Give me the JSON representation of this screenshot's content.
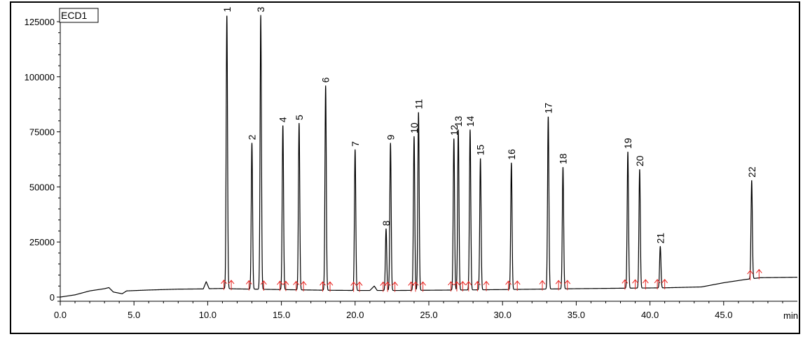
{
  "chart_data": {
    "type": "line",
    "title": "",
    "channel_label": "ECD1",
    "xlabel": "min",
    "ylabel": "",
    "xlim": [
      0,
      50
    ],
    "ylim": [
      0,
      125000
    ],
    "grid": false,
    "x_ticks": [
      "0.0",
      "5.0",
      "10.0",
      "15.0",
      "20.0",
      "25.0",
      "30.0",
      "35.0",
      "40.0",
      "45.0"
    ],
    "y_ticks": [
      "0",
      "25000",
      "50000",
      "75000",
      "100000",
      "125000"
    ],
    "x_tick_values": [
      0,
      5,
      10,
      15,
      20,
      25,
      30,
      35,
      40,
      45
    ],
    "y_tick_values": [
      0,
      25000,
      50000,
      75000,
      100000,
      125000
    ],
    "peaks": [
      {
        "label": "1",
        "rt": 11.3,
        "height": 128000
      },
      {
        "label": "2",
        "rt": 13.0,
        "height": 70000
      },
      {
        "label": "3",
        "rt": 13.6,
        "height": 128000
      },
      {
        "label": "4",
        "rt": 15.1,
        "height": 78000
      },
      {
        "label": "5",
        "rt": 16.2,
        "height": 79000
      },
      {
        "label": "6",
        "rt": 18.0,
        "height": 96000
      },
      {
        "label": "7",
        "rt": 20.0,
        "height": 67000
      },
      {
        "label": "8",
        "rt": 22.1,
        "height": 31000
      },
      {
        "label": "9",
        "rt": 22.4,
        "height": 70000
      },
      {
        "label": "10",
        "rt": 24.0,
        "height": 73000
      },
      {
        "label": "11",
        "rt": 24.3,
        "height": 84000
      },
      {
        "label": "12",
        "rt": 26.7,
        "height": 72000
      },
      {
        "label": "13",
        "rt": 27.0,
        "height": 76000
      },
      {
        "label": "14",
        "rt": 27.8,
        "height": 76000
      },
      {
        "label": "15",
        "rt": 28.5,
        "height": 63000
      },
      {
        "label": "16",
        "rt": 30.6,
        "height": 61000
      },
      {
        "label": "17",
        "rt": 33.1,
        "height": 82000
      },
      {
        "label": "18",
        "rt": 34.1,
        "height": 59000
      },
      {
        "label": "19",
        "rt": 38.5,
        "height": 66000
      },
      {
        "label": "20",
        "rt": 39.3,
        "height": 58000
      },
      {
        "label": "21",
        "rt": 40.7,
        "height": 23000
      },
      {
        "label": "22",
        "rt": 46.9,
        "height": 53000
      }
    ],
    "baseline": [
      [
        0,
        0
      ],
      [
        1.0,
        1000
      ],
      [
        2.0,
        2800
      ],
      [
        2.6,
        3400
      ],
      [
        3.0,
        3800
      ],
      [
        3.3,
        4300
      ],
      [
        3.6,
        2300
      ],
      [
        4.2,
        1500
      ],
      [
        4.5,
        2800
      ],
      [
        6.0,
        3200
      ],
      [
        8.0,
        3600
      ],
      [
        9.7,
        3700
      ],
      [
        9.9,
        7000
      ],
      [
        10.1,
        3800
      ],
      [
        11.0,
        3900
      ],
      [
        12.0,
        3700
      ],
      [
        14.0,
        3500
      ],
      [
        16.0,
        3300
      ],
      [
        18.0,
        3100
      ],
      [
        20.0,
        3000
      ],
      [
        21.0,
        3000
      ],
      [
        21.3,
        5000
      ],
      [
        21.5,
        3000
      ],
      [
        23.0,
        3000
      ],
      [
        25.0,
        3100
      ],
      [
        27.0,
        3200
      ],
      [
        30.0,
        3400
      ],
      [
        32.5,
        3600
      ],
      [
        35.0,
        3800
      ],
      [
        38.0,
        4000
      ],
      [
        41.0,
        4200
      ],
      [
        43.5,
        4600
      ],
      [
        45.0,
        6500
      ],
      [
        46.5,
        8000
      ],
      [
        47.5,
        8800
      ],
      [
        50.0,
        9000
      ]
    ],
    "integration_markers": [
      11.1,
      11.6,
      12.8,
      13.8,
      14.9,
      15.3,
      16.0,
      16.5,
      17.8,
      18.3,
      19.9,
      20.3,
      21.9,
      22.2,
      22.7,
      23.8,
      24.1,
      24.6,
      26.5,
      26.9,
      27.3,
      27.7,
      28.3,
      28.9,
      30.4,
      31.0,
      32.7,
      33.8,
      34.4,
      38.3,
      39.0,
      39.7,
      40.5,
      41.0,
      46.8,
      47.4
    ],
    "colors": {
      "trace": "#000000",
      "markers": "#e8231f",
      "label_tick": "#2a2aa0"
    }
  }
}
